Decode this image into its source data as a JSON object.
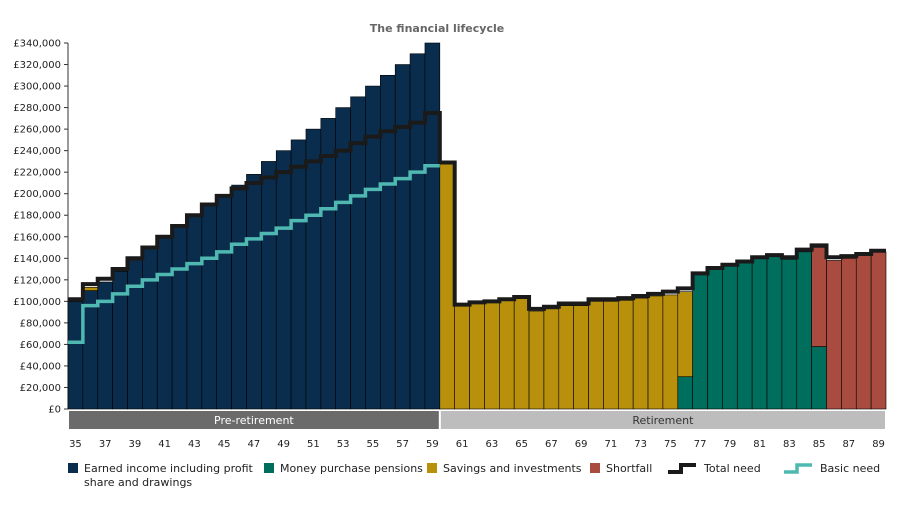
{
  "chart_data": {
    "type": "bar",
    "title": "The financial lifecycle",
    "colors": {
      "earned": "#0b2d4d",
      "money_purchase": "#006e5c",
      "savings": "#b8900c",
      "shortfall": "#a94b3f",
      "total_need": "#1a1a1a",
      "basic_need": "#4fb8b0",
      "pre_band": "#6b6b6b",
      "ret_band": "#bdbdbd"
    },
    "ylim": [
      0,
      340000
    ],
    "y_ticks": [
      "£0",
      "£20,000",
      "£40,000",
      "£60,000",
      "£80,000",
      "£100,000",
      "£120,000",
      "£140,000",
      "£160,000",
      "£180,000",
      "£200,000",
      "£220,000",
      "£240,000",
      "£260,000",
      "£280,000",
      "£300,000",
      "£320,000",
      "£340,000"
    ],
    "x_ticks": [
      "35",
      "37",
      "39",
      "41",
      "43",
      "45",
      "47",
      "49",
      "51",
      "53",
      "55",
      "57",
      "59",
      "61",
      "63",
      "65",
      "67",
      "69",
      "71",
      "73",
      "75",
      "77",
      "79",
      "81",
      "83",
      "85",
      "87",
      "89"
    ],
    "ages": [
      35,
      36,
      37,
      38,
      39,
      40,
      41,
      42,
      43,
      44,
      45,
      46,
      47,
      48,
      49,
      50,
      51,
      52,
      53,
      54,
      55,
      56,
      57,
      58,
      59,
      60,
      61,
      62,
      63,
      64,
      65,
      66,
      67,
      68,
      69,
      70,
      71,
      72,
      73,
      74,
      75,
      76,
      77,
      78,
      79,
      80,
      81,
      82,
      83,
      84,
      85,
      86,
      87,
      88,
      89
    ],
    "phases": [
      {
        "label": "Pre-retirement",
        "from_age": 35,
        "to_age": 59
      },
      {
        "label": "Retirement",
        "from_age": 60,
        "to_age": 89
      }
    ],
    "series": [
      {
        "name": "Earned income including profit share and drawings",
        "key": "earned",
        "values": [
          100000,
          110000,
          118000,
          128000,
          138000,
          150000,
          160000,
          170000,
          180000,
          190000,
          198000,
          208000,
          218000,
          230000,
          240000,
          250000,
          260000,
          270000,
          280000,
          290000,
          300000,
          310000,
          320000,
          330000,
          340000,
          0,
          0,
          0,
          0,
          0,
          0,
          0,
          0,
          0,
          0,
          0,
          0,
          0,
          0,
          0,
          0,
          0,
          0,
          0,
          0,
          0,
          0,
          0,
          0,
          0,
          0,
          0,
          0,
          0,
          0
        ]
      },
      {
        "name": "Money purchase pensions",
        "key": "money_purchase",
        "values": [
          0,
          0,
          0,
          0,
          0,
          0,
          0,
          0,
          0,
          0,
          0,
          0,
          0,
          0,
          0,
          0,
          0,
          0,
          0,
          0,
          0,
          0,
          0,
          0,
          0,
          0,
          0,
          0,
          0,
          0,
          0,
          0,
          0,
          0,
          0,
          0,
          0,
          0,
          0,
          0,
          0,
          30000,
          125000,
          130000,
          133000,
          136000,
          140000,
          142000,
          139000,
          146000,
          58000,
          0,
          0,
          0,
          0
        ]
      },
      {
        "name": "Savings and investments",
        "key": "savings",
        "values": [
          3000,
          3000,
          0,
          0,
          0,
          0,
          0,
          0,
          0,
          0,
          0,
          0,
          0,
          0,
          0,
          0,
          0,
          0,
          0,
          0,
          0,
          0,
          0,
          0,
          0,
          228000,
          96000,
          98000,
          99000,
          101000,
          103000,
          91000,
          93000,
          96000,
          96000,
          100000,
          100000,
          101000,
          103000,
          105000,
          106000,
          79000,
          0,
          0,
          0,
          0,
          0,
          0,
          0,
          0,
          0,
          0,
          0,
          0,
          0
        ]
      },
      {
        "name": "Shortfall",
        "key": "shortfall",
        "values": [
          0,
          0,
          0,
          0,
          0,
          0,
          0,
          0,
          0,
          0,
          0,
          0,
          0,
          0,
          0,
          0,
          0,
          0,
          0,
          0,
          0,
          0,
          0,
          0,
          0,
          0,
          0,
          0,
          0,
          0,
          0,
          0,
          0,
          0,
          0,
          0,
          0,
          0,
          0,
          0,
          0,
          0,
          0,
          0,
          0,
          0,
          0,
          0,
          0,
          0,
          92000,
          138000,
          140000,
          143000,
          146000
        ]
      },
      {
        "name": "Total need",
        "key": "total_need",
        "kind": "step",
        "values": [
          102000,
          116000,
          121000,
          130000,
          140000,
          150000,
          160000,
          170000,
          180000,
          190000,
          198000,
          205000,
          210000,
          215000,
          220000,
          225000,
          230000,
          235000,
          240000,
          247000,
          253000,
          258000,
          262000,
          266000,
          275000,
          229000,
          97000,
          99000,
          100000,
          102000,
          104000,
          93000,
          95000,
          98000,
          98000,
          102000,
          102000,
          103000,
          105000,
          107000,
          109000,
          112000,
          126000,
          131000,
          134000,
          137000,
          141000,
          143000,
          141000,
          148000,
          152000,
          141000,
          142000,
          144000,
          147000
        ]
      },
      {
        "name": "Basic need",
        "key": "basic_need",
        "kind": "step",
        "values": [
          62000,
          96000,
          100000,
          107000,
          114000,
          120000,
          125000,
          130000,
          135000,
          140000,
          146000,
          153000,
          158000,
          163000,
          168000,
          175000,
          180000,
          186000,
          192000,
          198000,
          204000,
          209000,
          214000,
          220000,
          226000,
          null,
          null,
          null,
          null,
          null,
          null,
          null,
          null,
          null,
          null,
          null,
          null,
          null,
          null,
          null,
          null,
          null,
          null,
          null,
          null,
          null,
          null,
          null,
          null,
          null,
          null,
          null,
          null,
          null,
          null
        ]
      }
    ],
    "legend": [
      {
        "label_lines": [
          "Earned income including profit",
          "share and drawings"
        ],
        "key": "earned",
        "kind": "box"
      },
      {
        "label_lines": [
          "Money purchase pensions"
        ],
        "key": "money_purchase",
        "kind": "box"
      },
      {
        "label_lines": [
          "Savings and investments"
        ],
        "key": "savings",
        "kind": "box"
      },
      {
        "label_lines": [
          "Shortfall"
        ],
        "key": "shortfall",
        "kind": "box"
      },
      {
        "label_lines": [
          "Total need"
        ],
        "key": "total_need",
        "kind": "line"
      },
      {
        "label_lines": [
          "Basic need"
        ],
        "key": "basic_need",
        "kind": "line"
      }
    ],
    "legend_placement": "bottom",
    "grid": false
  }
}
